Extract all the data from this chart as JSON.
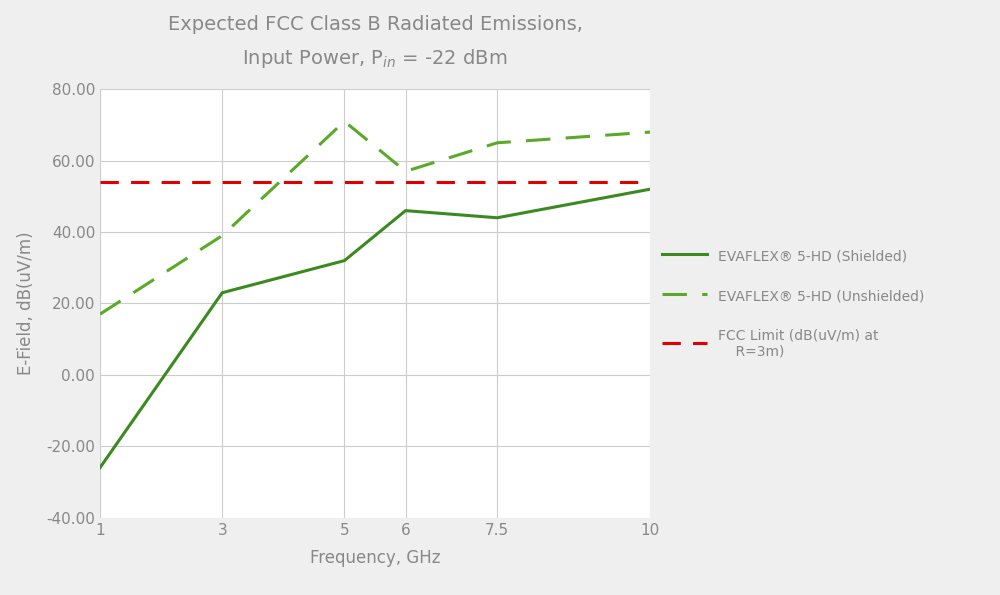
{
  "title_line1": "Expected FCC Class B Radiated Emissions,",
  "title_line2": "Input Power, P",
  "title_line2_sub": "in",
  "title_line2_rest": " = -22 dBm",
  "xlabel": "Frequency, GHz",
  "ylabel": "E-Field, dB(uV/m)",
  "xlim": [
    1,
    10
  ],
  "ylim": [
    -40,
    80
  ],
  "yticks": [
    -40.0,
    -20.0,
    0.0,
    20.0,
    40.0,
    60.0,
    80.0
  ],
  "xticks": [
    1,
    3,
    5,
    6,
    7.5,
    10
  ],
  "shielded_x": [
    1,
    3,
    5,
    6,
    7.5,
    10
  ],
  "shielded_y": [
    -26,
    23,
    32,
    46,
    44,
    52
  ],
  "unshielded_x": [
    1,
    3,
    5,
    6,
    7.5,
    10
  ],
  "unshielded_y": [
    17,
    39,
    71,
    57,
    65,
    68
  ],
  "fcc_limit": 54,
  "shielded_color": "#3a8a1f",
  "unshielded_color": "#5aaa28",
  "fcc_color": "#e00000",
  "background_color": "#efefef",
  "plot_bg_color": "#ffffff",
  "grid_color": "#cccccc",
  "legend_shielded": "EVAFLEX® 5-HD (Shielded)",
  "legend_unshielded": "EVAFLEX® 5-HD (Unshielded)",
  "legend_fcc_line1": "FCC Limit (dB(uV/m) at",
  "legend_fcc_line2": "    R=3m)",
  "title_color": "#888888",
  "axis_label_color": "#888888",
  "tick_color": "#888888",
  "tick_fontsize": 11,
  "label_fontsize": 12,
  "title_fontsize": 14,
  "legend_fontsize": 10
}
